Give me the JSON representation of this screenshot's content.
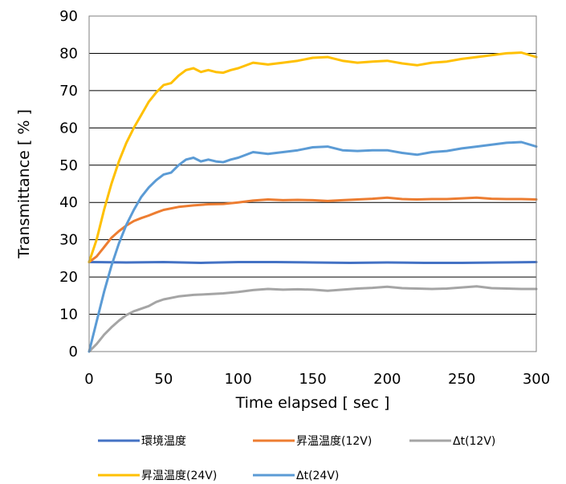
{
  "chart_data": {
    "type": "line",
    "title": "",
    "xlabel": "Time elapsed [ sec ]",
    "ylabel": "Transmittance [ % ]",
    "xlim": [
      0,
      300
    ],
    "ylim": [
      0,
      90
    ],
    "x_ticks": [
      0,
      50,
      100,
      150,
      200,
      250,
      300
    ],
    "y_ticks": [
      0,
      10,
      20,
      30,
      40,
      50,
      60,
      70,
      80,
      90
    ],
    "grid": "horizontal",
    "legend_position": "bottom",
    "series": [
      {
        "name": "環境温度",
        "color": "#4472C4",
        "points": [
          [
            0,
            24.0
          ],
          [
            25,
            23.9
          ],
          [
            50,
            24.0
          ],
          [
            75,
            23.8
          ],
          [
            100,
            24.0
          ],
          [
            125,
            24.0
          ],
          [
            150,
            23.9
          ],
          [
            175,
            23.8
          ],
          [
            200,
            23.9
          ],
          [
            225,
            23.8
          ],
          [
            250,
            23.8
          ],
          [
            275,
            23.9
          ],
          [
            300,
            24.0
          ]
        ]
      },
      {
        "name": "昇温温度(12V)",
        "color": "#ED7D31",
        "points": [
          [
            0,
            24.0
          ],
          [
            5,
            25.5
          ],
          [
            10,
            28.0
          ],
          [
            15,
            30.5
          ],
          [
            20,
            32.3
          ],
          [
            25,
            33.8
          ],
          [
            30,
            35.0
          ],
          [
            35,
            35.8
          ],
          [
            40,
            36.5
          ],
          [
            45,
            37.3
          ],
          [
            50,
            38.0
          ],
          [
            60,
            38.8
          ],
          [
            70,
            39.2
          ],
          [
            80,
            39.5
          ],
          [
            90,
            39.6
          ],
          [
            100,
            40.0
          ],
          [
            110,
            40.5
          ],
          [
            120,
            40.8
          ],
          [
            130,
            40.6
          ],
          [
            140,
            40.7
          ],
          [
            150,
            40.6
          ],
          [
            160,
            40.4
          ],
          [
            170,
            40.6
          ],
          [
            180,
            40.8
          ],
          [
            190,
            41.0
          ],
          [
            200,
            41.3
          ],
          [
            210,
            40.9
          ],
          [
            220,
            40.8
          ],
          [
            230,
            40.9
          ],
          [
            240,
            40.9
          ],
          [
            250,
            41.1
          ],
          [
            260,
            41.3
          ],
          [
            270,
            41.0
          ],
          [
            280,
            40.9
          ],
          [
            290,
            40.9
          ],
          [
            300,
            40.8
          ]
        ]
      },
      {
        "name": "Δt(12V)",
        "color": "#A5A5A5",
        "points": [
          [
            0,
            0.0
          ],
          [
            5,
            2.0
          ],
          [
            10,
            4.5
          ],
          [
            15,
            6.5
          ],
          [
            20,
            8.3
          ],
          [
            25,
            9.8
          ],
          [
            30,
            10.8
          ],
          [
            35,
            11.5
          ],
          [
            40,
            12.2
          ],
          [
            45,
            13.3
          ],
          [
            50,
            14.0
          ],
          [
            60,
            14.8
          ],
          [
            70,
            15.2
          ],
          [
            80,
            15.4
          ],
          [
            90,
            15.6
          ],
          [
            100,
            16.0
          ],
          [
            110,
            16.5
          ],
          [
            120,
            16.8
          ],
          [
            130,
            16.6
          ],
          [
            140,
            16.7
          ],
          [
            150,
            16.6
          ],
          [
            160,
            16.3
          ],
          [
            170,
            16.6
          ],
          [
            180,
            16.9
          ],
          [
            190,
            17.1
          ],
          [
            200,
            17.4
          ],
          [
            210,
            17.0
          ],
          [
            220,
            16.9
          ],
          [
            230,
            16.8
          ],
          [
            240,
            16.9
          ],
          [
            250,
            17.2
          ],
          [
            260,
            17.5
          ],
          [
            270,
            17.0
          ],
          [
            280,
            16.9
          ],
          [
            290,
            16.8
          ],
          [
            300,
            16.8
          ]
        ]
      },
      {
        "name": "昇温温度(24V)",
        "color": "#FFC000",
        "points": [
          [
            0,
            24.0
          ],
          [
            5,
            30.0
          ],
          [
            10,
            38.0
          ],
          [
            15,
            45.0
          ],
          [
            20,
            51.0
          ],
          [
            25,
            56.0
          ],
          [
            30,
            60.0
          ],
          [
            35,
            63.5
          ],
          [
            40,
            67.0
          ],
          [
            45,
            69.5
          ],
          [
            50,
            71.5
          ],
          [
            55,
            72.0
          ],
          [
            60,
            74.0
          ],
          [
            65,
            75.5
          ],
          [
            70,
            76.0
          ],
          [
            75,
            75.0
          ],
          [
            80,
            75.5
          ],
          [
            85,
            75.0
          ],
          [
            90,
            74.8
          ],
          [
            95,
            75.5
          ],
          [
            100,
            76.0
          ],
          [
            110,
            77.5
          ],
          [
            120,
            77.0
          ],
          [
            130,
            77.5
          ],
          [
            140,
            78.0
          ],
          [
            150,
            78.8
          ],
          [
            160,
            79.0
          ],
          [
            170,
            78.0
          ],
          [
            180,
            77.5
          ],
          [
            190,
            77.8
          ],
          [
            200,
            78.0
          ],
          [
            210,
            77.3
          ],
          [
            220,
            76.8
          ],
          [
            230,
            77.5
          ],
          [
            240,
            77.8
          ],
          [
            250,
            78.5
          ],
          [
            260,
            79.0
          ],
          [
            270,
            79.5
          ],
          [
            280,
            80.0
          ],
          [
            290,
            80.2
          ],
          [
            300,
            79.0
          ]
        ]
      },
      {
        "name": "Δt(24V)",
        "color": "#5B9BD5",
        "points": [
          [
            0,
            0.0
          ],
          [
            5,
            8.0
          ],
          [
            10,
            16.0
          ],
          [
            15,
            23.0
          ],
          [
            20,
            29.0
          ],
          [
            25,
            34.0
          ],
          [
            30,
            38.0
          ],
          [
            35,
            41.5
          ],
          [
            40,
            44.0
          ],
          [
            45,
            46.0
          ],
          [
            50,
            47.5
          ],
          [
            55,
            48.0
          ],
          [
            60,
            50.0
          ],
          [
            65,
            51.5
          ],
          [
            70,
            52.0
          ],
          [
            75,
            51.0
          ],
          [
            80,
            51.5
          ],
          [
            85,
            51.0
          ],
          [
            90,
            50.8
          ],
          [
            95,
            51.5
          ],
          [
            100,
            52.0
          ],
          [
            110,
            53.5
          ],
          [
            120,
            53.0
          ],
          [
            130,
            53.5
          ],
          [
            140,
            54.0
          ],
          [
            150,
            54.8
          ],
          [
            160,
            55.0
          ],
          [
            170,
            54.0
          ],
          [
            180,
            53.8
          ],
          [
            190,
            54.0
          ],
          [
            200,
            54.0
          ],
          [
            210,
            53.3
          ],
          [
            220,
            52.8
          ],
          [
            230,
            53.5
          ],
          [
            240,
            53.8
          ],
          [
            250,
            54.5
          ],
          [
            260,
            55.0
          ],
          [
            270,
            55.5
          ],
          [
            280,
            56.0
          ],
          [
            290,
            56.2
          ],
          [
            300,
            55.0
          ]
        ]
      }
    ]
  }
}
